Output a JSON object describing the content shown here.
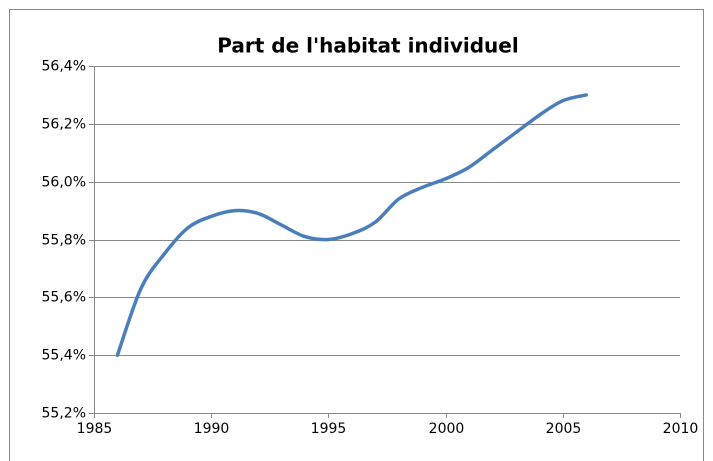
{
  "chart_data": {
    "type": "line",
    "title": "Part de l'habitat individuel",
    "x": [
      1986,
      1987,
      1988,
      1989,
      1990,
      1991,
      1992,
      1993,
      1994,
      1995,
      1996,
      1997,
      1998,
      1999,
      2000,
      2001,
      2002,
      2003,
      2004,
      2005,
      2006
    ],
    "series": [
      {
        "name": "Part de l'habitat individuel",
        "color": "#4a7ebb",
        "values": [
          55.4,
          55.63,
          55.75,
          55.84,
          55.88,
          55.9,
          55.89,
          55.85,
          55.81,
          55.8,
          55.82,
          55.86,
          55.94,
          55.98,
          56.01,
          56.05,
          56.11,
          56.17,
          56.23,
          56.28,
          56.3
        ]
      }
    ],
    "xlim": [
      1985,
      2010
    ],
    "xticks": [
      1985,
      1990,
      1995,
      2000,
      2005,
      2010
    ],
    "ylim": [
      55.2,
      56.4
    ],
    "yticks": [
      {
        "value": 55.2,
        "label": "55,2%"
      },
      {
        "value": 55.4,
        "label": "55,4%"
      },
      {
        "value": 55.6,
        "label": "55,6%"
      },
      {
        "value": 55.8,
        "label": "55,8%"
      },
      {
        "value": 56.0,
        "label": "56,0%"
      },
      {
        "value": 56.2,
        "label": "56,2%"
      },
      {
        "value": 56.4,
        "label": "56,4%"
      }
    ],
    "grid": true
  }
}
